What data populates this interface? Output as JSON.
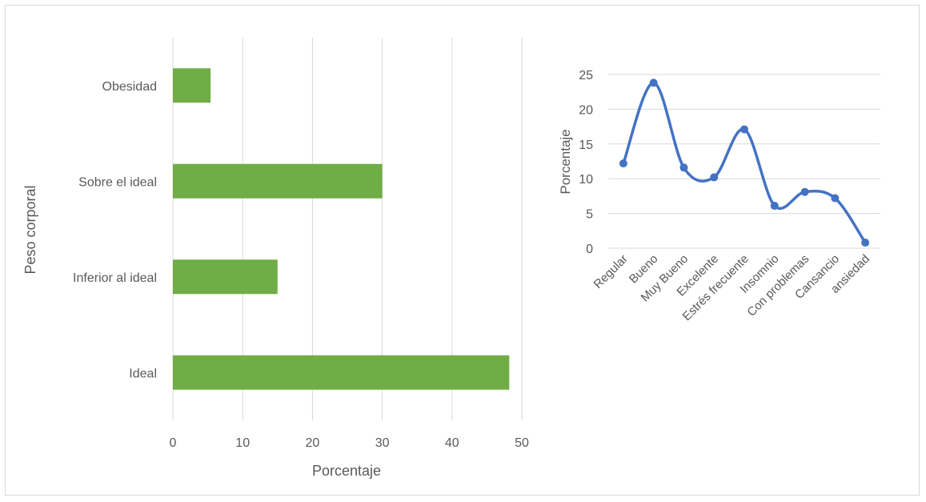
{
  "colors": {
    "bar": "#70ad47",
    "line": "#4472c4",
    "grid": "#d9d9d9",
    "text": "#595959",
    "frame": "#d9d9d9"
  },
  "chart_data": [
    {
      "type": "bar",
      "orientation": "horizontal",
      "title": "",
      "xlabel": "Porcentaje",
      "ylabel": "Peso corporal",
      "categories": [
        "Ideal",
        "Inferior al ideal",
        "Sobre el ideal",
        "Obesidad"
      ],
      "values": [
        48.2,
        15,
        30,
        5.4
      ],
      "xlim": [
        0,
        50
      ],
      "xticks": [
        "0",
        "10",
        "20",
        "30",
        "40",
        "50"
      ],
      "grid": true,
      "legend": "none"
    },
    {
      "type": "line",
      "smooth": true,
      "markers": true,
      "title": "",
      "xlabel": "",
      "ylabel": "Porcentaje",
      "categories": [
        "Regular",
        "Bueno",
        "Muy Bueno",
        "Excelente",
        "Estrés frecuente",
        "Insomnio",
        "Con problemas",
        "Cansancio",
        "ansiedad"
      ],
      "values": [
        12.2,
        23.8,
        11.6,
        10.2,
        17.1,
        6.1,
        8.1,
        7.2,
        0.8
      ],
      "ylim": [
        0,
        25
      ],
      "yticks": [
        "0",
        "5",
        "10",
        "15",
        "20",
        "25"
      ],
      "grid": true,
      "legend": "none"
    }
  ]
}
